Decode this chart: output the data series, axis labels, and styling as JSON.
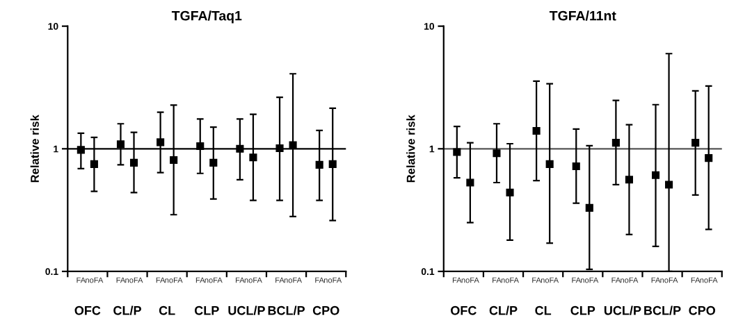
{
  "chart_data": [
    {
      "type": "scatter",
      "title": "TGFA/Taq1",
      "ylabel": "Relative risk",
      "log": true,
      "ylim": [
        0.1,
        10
      ],
      "yticks": [
        0.1,
        1,
        10
      ],
      "marker": "square",
      "grid": false,
      "legend": false,
      "categories": [
        "FA",
        "noFA",
        "FA",
        "noFA",
        "FA",
        "noFA",
        "FA",
        "noFA",
        "FA",
        "noFA",
        "FA",
        "noFA",
        "FA",
        "noFA"
      ],
      "annotations": [
        "OFC",
        "CL/P",
        "CL",
        "CLP",
        "UCL/P",
        "BCL/P",
        "CPO"
      ],
      "ref_lines": [
        {
          "axis": "y",
          "value": 1,
          "color": "#000000"
        }
      ],
      "series": [
        {
          "color": "#000000",
          "values": [
            0.98,
            0.75,
            1.09,
            0.77,
            1.13,
            0.81,
            1.05,
            0.77,
            1.0,
            0.85,
            1.01,
            1.07,
            0.74,
            0.75
          ],
          "errors": [
            [
              0.69,
              1.34
            ],
            [
              0.45,
              1.24
            ],
            [
              0.74,
              1.6
            ],
            [
              0.44,
              1.36
            ],
            [
              0.64,
              1.99
            ],
            [
              0.29,
              2.27
            ],
            [
              0.63,
              1.75
            ],
            [
              0.39,
              1.5
            ],
            [
              0.56,
              1.75
            ],
            [
              0.38,
              1.91
            ],
            [
              0.38,
              2.63
            ],
            [
              0.28,
              4.09
            ],
            [
              0.38,
              1.41
            ],
            [
              0.26,
              2.14
            ]
          ]
        }
      ]
    },
    {
      "type": "scatter",
      "title": "TGFA/11nt",
      "ylabel": "Relative risk",
      "log": true,
      "ylim": [
        0.1,
        10
      ],
      "yticks": [
        0.1,
        1,
        10
      ],
      "marker": "square",
      "grid": false,
      "legend": false,
      "categories": [
        "FA",
        "noFA",
        "FA",
        "noFA",
        "FA",
        "noFA",
        "FA",
        "noFA",
        "FA",
        "noFA",
        "FA",
        "noFA",
        "FA",
        "noFA"
      ],
      "annotations": [
        "OFC",
        "CL/P",
        "CL",
        "CLP",
        "UCL/P",
        "BCL/P",
        "CPO"
      ],
      "ref_lines": [
        {
          "axis": "y",
          "value": 1,
          "color": "#555555"
        }
      ],
      "series": [
        {
          "color": "#000000",
          "values": [
            0.94,
            0.53,
            0.92,
            0.44,
            1.4,
            0.75,
            0.72,
            0.33,
            1.12,
            0.56,
            0.61,
            0.51,
            1.12,
            0.84
          ],
          "errors": [
            [
              0.58,
              1.52
            ],
            [
              0.25,
              1.12
            ],
            [
              0.53,
              1.6
            ],
            [
              0.18,
              1.1
            ],
            [
              0.55,
              3.56
            ],
            [
              0.17,
              3.39
            ],
            [
              0.36,
              1.45
            ],
            [
              0.104,
              1.06
            ],
            [
              0.51,
              2.48
            ],
            [
              0.2,
              1.57
            ],
            [
              0.16,
              2.29
            ],
            [
              0.1,
              5.97
            ],
            [
              0.42,
              2.97
            ],
            [
              0.22,
              3.25
            ]
          ]
        }
      ]
    }
  ]
}
